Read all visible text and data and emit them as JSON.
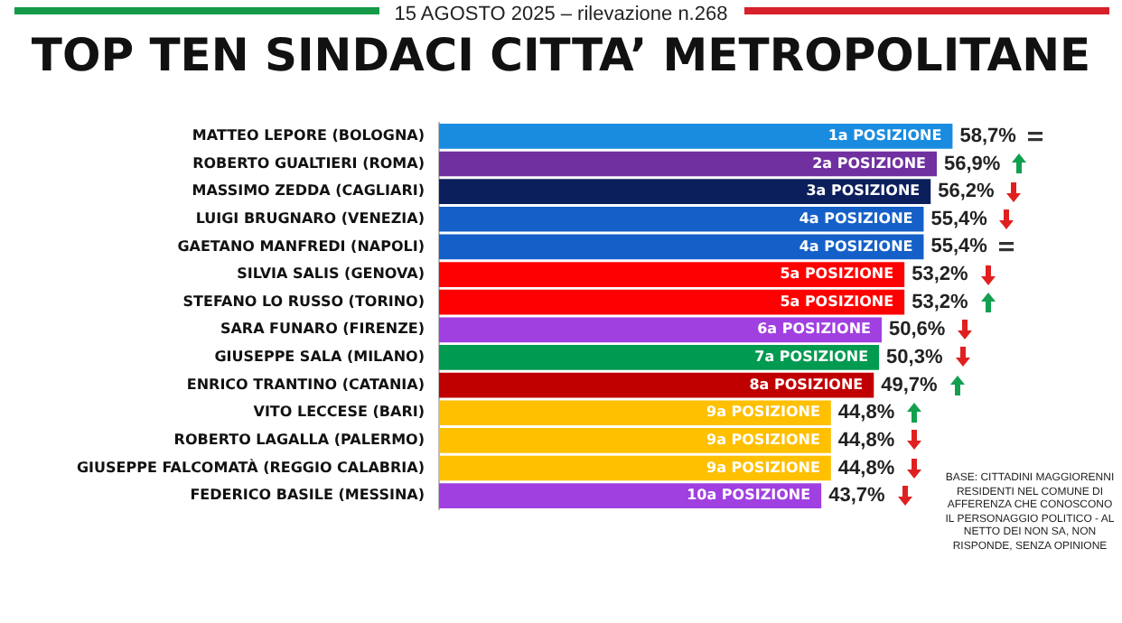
{
  "chart_data": {
    "type": "bar",
    "orientation": "horizontal",
    "title": "TOP TEN SINDACI CITTA’ METROPOLITANE",
    "subtitle": "15 AGOSTO 2025 – rilevazione n.268",
    "categories": [
      "MATTEO LEPORE (BOLOGNA)",
      "ROBERTO GUALTIERI (ROMA)",
      "MASSIMO ZEDDA (CAGLIARI)",
      "LUIGI BRUGNARO (VENEZIA)",
      "GAETANO MANFREDI (NAPOLI)",
      "SILVIA SALIS (GENOVA)",
      "STEFANO LO RUSSO (TORINO)",
      "SARA FUNARO (FIRENZE)",
      "GIUSEPPE SALA (MILANO)",
      "ENRICO TRANTINO (CATANIA)",
      "VITO LECCESE (BARI)",
      "ROBERTO LAGALLA (PALERMO)",
      "GIUSEPPE FALCOMATÀ (REGGIO CALABRIA)",
      "FEDERICO BASILE (MESSINA)"
    ],
    "values": [
      58.7,
      56.9,
      56.2,
      55.4,
      55.4,
      53.2,
      53.2,
      50.6,
      50.3,
      49.7,
      44.8,
      44.8,
      44.8,
      43.7
    ],
    "value_labels": [
      "58,7%",
      "56,9%",
      "56,2%",
      "55,4%",
      "55,4%",
      "53,2%",
      "53,2%",
      "50,6%",
      "50,3%",
      "49,7%",
      "44,8%",
      "44,8%",
      "44,8%",
      "43,7%"
    ],
    "colors": [
      "#1a8ce0",
      "#7030a0",
      "#0b1f5c",
      "#1560c8",
      "#1560c8",
      "#ff0000",
      "#ff0000",
      "#a040e0",
      "#009a50",
      "#c00000",
      "#ffc000",
      "#ffc000",
      "#ffc000",
      "#a040e0"
    ],
    "annotations": [
      {
        "text": "1a POSIZIONE",
        "x": 58.7,
        "y": "MATTEO LEPORE (BOLOGNA)"
      },
      {
        "text": "2a POSIZIONE",
        "x": 56.9,
        "y": "ROBERTO GUALTIERI (ROMA)"
      },
      {
        "text": "3a POSIZIONE",
        "x": 56.2,
        "y": "MASSIMO ZEDDA (CAGLIARI)"
      },
      {
        "text": "4a POSIZIONE",
        "x": 55.4,
        "y": "LUIGI BRUGNARO (VENEZIA)"
      },
      {
        "text": "4a POSIZIONE",
        "x": 55.4,
        "y": "GAETANO MANFREDI (NAPOLI)"
      },
      {
        "text": "5a POSIZIONE",
        "x": 53.2,
        "y": "SILVIA SALIS (GENOVA)"
      },
      {
        "text": "5a POSIZIONE",
        "x": 53.2,
        "y": "STEFANO LO RUSSO (TORINO)"
      },
      {
        "text": "6a POSIZIONE",
        "x": 50.6,
        "y": "SARA FUNARO (FIRENZE)"
      },
      {
        "text": "7a POSIZIONE",
        "x": 50.3,
        "y": "GIUSEPPE SALA (MILANO)"
      },
      {
        "text": "8a POSIZIONE",
        "x": 49.7,
        "y": "ENRICO TRANTINO (CATANIA)"
      },
      {
        "text": "9a POSIZIONE",
        "x": 44.8,
        "y": "VITO LECCESE (BARI)"
      },
      {
        "text": "9a POSIZIONE",
        "x": 44.8,
        "y": "ROBERTO LAGALLA (PALERMO)"
      },
      {
        "text": "9a POSIZIONE",
        "x": 44.8,
        "y": "GIUSEPPE FALCOMATÀ (REGGIO CALABRIA)"
      },
      {
        "text": "10a POSIZIONE",
        "x": 43.7,
        "y": "FEDERICO BASILE (MESSINA)"
      },
      "BASE: CITTADINI MAGGIORENNI RESIDENTI NEL COMUNE DI AFFERENZA CHE CONOSCONO IL PERSONAGGIO POLITICO - AL NETTO DEI NON SA, NON RISPONDE, SENZA OPINIONE"
    ],
    "grid": false,
    "legend": false
  }
}
